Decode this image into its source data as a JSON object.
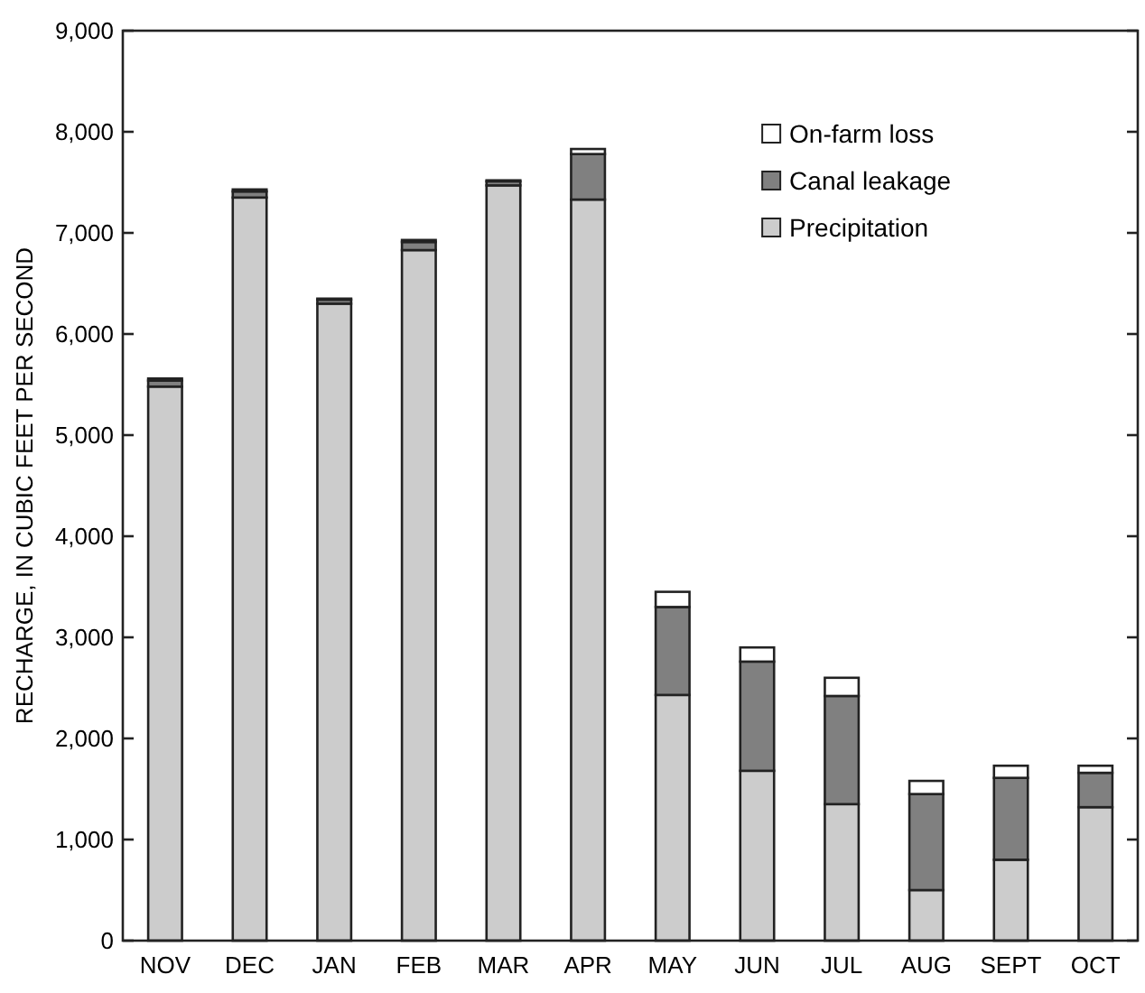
{
  "chart_data": {
    "type": "bar",
    "stacked": true,
    "ylabel": "RECHARGE, IN CUBIC FEET PER SECOND",
    "categories": [
      "NOV",
      "DEC",
      "JAN",
      "FEB",
      "MAR",
      "APR",
      "MAY",
      "JUN",
      "JUL",
      "AUG",
      "SEPT",
      "OCT"
    ],
    "series": [
      {
        "name": "Precipitation",
        "color": "#cccccc",
        "values": [
          5480,
          7350,
          6300,
          6830,
          7470,
          7330,
          2430,
          1680,
          1350,
          500,
          800,
          1320
        ]
      },
      {
        "name": "Canal leakage",
        "color": "#808080",
        "values": [
          60,
          60,
          40,
          80,
          40,
          450,
          870,
          1080,
          1070,
          950,
          810,
          340
        ]
      },
      {
        "name": "On-farm loss",
        "color": "#ffffff",
        "values": [
          20,
          20,
          10,
          20,
          10,
          50,
          150,
          140,
          180,
          130,
          120,
          70
        ]
      }
    ],
    "ylim": [
      0,
      9000
    ],
    "yticks": [
      {
        "value": 0,
        "label": "0"
      },
      {
        "value": 1000,
        "label": "1,000"
      },
      {
        "value": 2000,
        "label": "2,000"
      },
      {
        "value": 3000,
        "label": "3,000"
      },
      {
        "value": 4000,
        "label": "4,000"
      },
      {
        "value": 5000,
        "label": "5,000"
      },
      {
        "value": 6000,
        "label": "6,000"
      },
      {
        "value": 7000,
        "label": "7,000"
      },
      {
        "value": 8000,
        "label": "8,000"
      },
      {
        "value": 9000,
        "label": "9,000"
      }
    ],
    "grid": false,
    "legend": "top right"
  }
}
